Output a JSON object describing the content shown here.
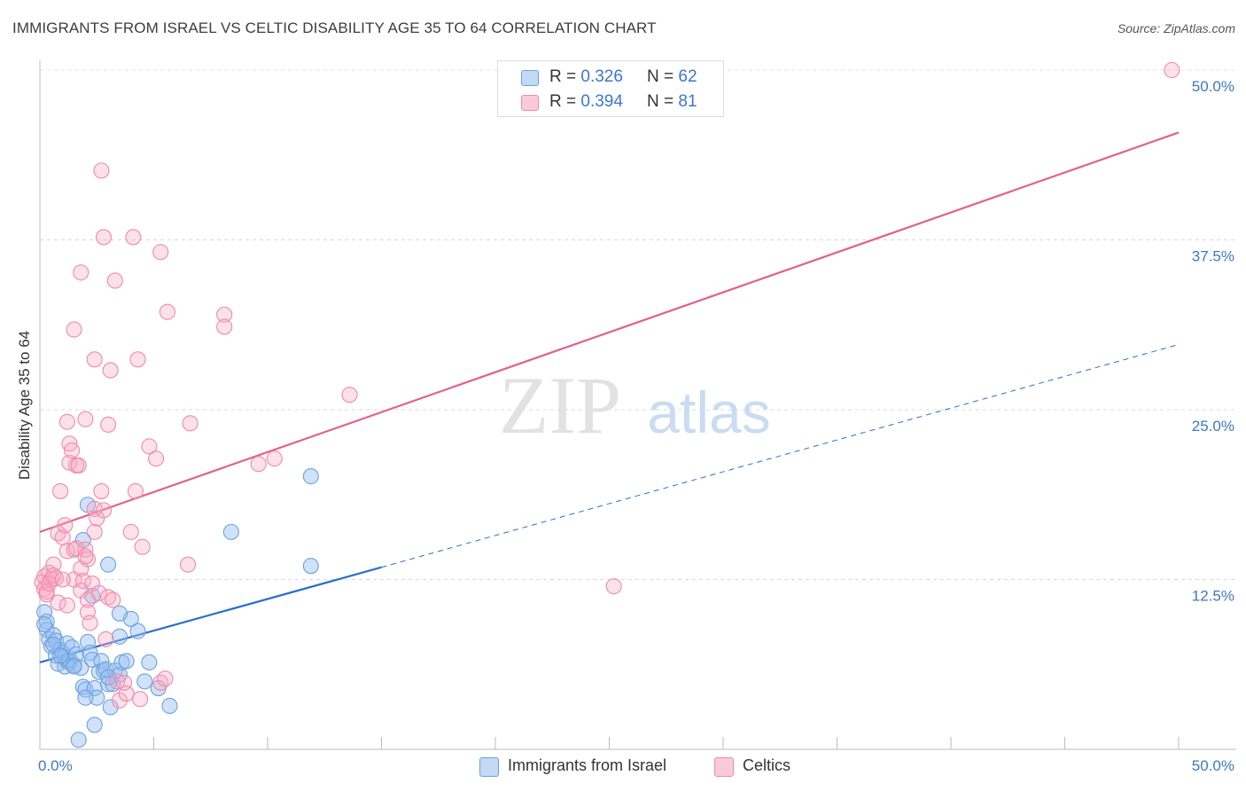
{
  "title": "IMMIGRANTS FROM ISRAEL VS CELTIC DISABILITY AGE 35 TO 64 CORRELATION CHART",
  "source": "Source: ZipAtlas.com",
  "watermark": {
    "zip": "ZIP",
    "atlas": "atlas"
  },
  "legend_top": [
    {
      "r_label": "R = ",
      "r_value": "0.326",
      "n_label": "N = ",
      "n_value": "62",
      "color": "#6ea1e0"
    },
    {
      "r_label": "R = ",
      "r_value": "0.394",
      "n_label": "N = ",
      "n_value": "81",
      "color": "#f08aaa"
    }
  ],
  "legend_bottom": [
    {
      "label": "Immigrants from Israel",
      "color": "#6ea1e0"
    },
    {
      "label": "Celtics",
      "color": "#f08aaa"
    }
  ],
  "chart_data": {
    "type": "scatter",
    "title": "IMMIGRANTS FROM ISRAEL VS CELTIC DISABILITY AGE 35 TO 64 CORRELATION CHART",
    "xlabel": "",
    "ylabel": "Disability Age 35 to 64",
    "xlim": [
      0,
      50
    ],
    "ylim": [
      0,
      50
    ],
    "x_tick_labels": [
      "0.0%",
      "50.0%"
    ],
    "y_tick_labels": [
      "12.5%",
      "25.0%",
      "37.5%",
      "50.0%"
    ],
    "y_ticks": [
      12.5,
      25.0,
      37.5,
      50.0
    ],
    "grid": true,
    "legend_placement": "top-center",
    "series": [
      {
        "name": "Immigrants from Israel",
        "color": "#6ea1e0",
        "line_color": "#2a6fc9",
        "trend": {
          "x0": 0,
          "y0": 6.4,
          "x1": 15,
          "y1": 13.4,
          "dashed_to_x": 50,
          "dashed_to_y": 29.8
        },
        "points": [
          [
            0.2,
            10.1
          ],
          [
            0.3,
            9.4
          ],
          [
            0.3,
            8.8
          ],
          [
            0.4,
            8.1
          ],
          [
            0.5,
            7.6
          ],
          [
            0.6,
            8.4
          ],
          [
            0.7,
            8.0
          ],
          [
            0.7,
            6.9
          ],
          [
            0.8,
            6.3
          ],
          [
            0.9,
            7.3
          ],
          [
            1.0,
            7.1
          ],
          [
            1.1,
            6.8
          ],
          [
            1.1,
            6.1
          ],
          [
            1.2,
            6.5
          ],
          [
            1.2,
            7.8
          ],
          [
            1.3,
            6.4
          ],
          [
            1.3,
            6.6
          ],
          [
            1.4,
            7.5
          ],
          [
            1.5,
            6.2
          ],
          [
            1.6,
            7.0
          ],
          [
            1.8,
            6.0
          ],
          [
            1.9,
            4.6
          ],
          [
            2.0,
            4.4
          ],
          [
            2.1,
            7.9
          ],
          [
            2.2,
            7.1
          ],
          [
            2.3,
            6.6
          ],
          [
            2.4,
            4.5
          ],
          [
            2.5,
            3.8
          ],
          [
            2.6,
            5.7
          ],
          [
            2.7,
            6.5
          ],
          [
            2.8,
            5.8
          ],
          [
            2.9,
            5.9
          ],
          [
            3.0,
            4.8
          ],
          [
            3.1,
            3.1
          ],
          [
            3.2,
            4.8
          ],
          [
            3.3,
            5.8
          ],
          [
            3.5,
            5.5
          ],
          [
            3.6,
            6.4
          ],
          [
            3.8,
            6.5
          ],
          [
            4.0,
            9.6
          ],
          [
            4.3,
            8.7
          ],
          [
            4.6,
            5.0
          ],
          [
            5.2,
            4.5
          ],
          [
            5.7,
            3.2
          ],
          [
            1.9,
            15.4
          ],
          [
            2.1,
            18.0
          ],
          [
            2.3,
            11.3
          ],
          [
            3.5,
            10.0
          ],
          [
            3.5,
            8.3
          ],
          [
            3.0,
            13.6
          ],
          [
            4.8,
            6.4
          ],
          [
            2.0,
            3.8
          ],
          [
            2.4,
            1.8
          ],
          [
            1.7,
            0.7
          ],
          [
            0.6,
            7.7
          ],
          [
            0.9,
            6.9
          ],
          [
            1.5,
            6.1
          ],
          [
            8.4,
            16.0
          ],
          [
            11.9,
            20.1
          ],
          [
            11.9,
            13.5
          ],
          [
            0.2,
            9.2
          ],
          [
            3.0,
            5.3
          ]
        ]
      },
      {
        "name": "Celtics",
        "color": "#f08aaa",
        "line_color": "#e0628c",
        "trend": {
          "x0": 0,
          "y0": 16.0,
          "x1": 50,
          "y1": 45.4
        },
        "points": [
          [
            0.1,
            12.3
          ],
          [
            0.2,
            11.8
          ],
          [
            0.2,
            12.7
          ],
          [
            0.3,
            11.4
          ],
          [
            0.4,
            13.0
          ],
          [
            0.5,
            12.5
          ],
          [
            0.6,
            13.6
          ],
          [
            0.7,
            12.6
          ],
          [
            0.8,
            10.8
          ],
          [
            0.8,
            15.9
          ],
          [
            0.9,
            19.0
          ],
          [
            1.0,
            15.6
          ],
          [
            1.1,
            16.5
          ],
          [
            1.2,
            14.6
          ],
          [
            1.2,
            24.1
          ],
          [
            1.3,
            22.5
          ],
          [
            1.3,
            21.1
          ],
          [
            1.4,
            22.0
          ],
          [
            1.5,
            14.7
          ],
          [
            1.5,
            12.5
          ],
          [
            1.6,
            20.9
          ],
          [
            1.7,
            20.9
          ],
          [
            1.8,
            13.3
          ],
          [
            1.8,
            11.7
          ],
          [
            1.9,
            12.4
          ],
          [
            2.0,
            24.3
          ],
          [
            2.0,
            14.7
          ],
          [
            2.1,
            14.0
          ],
          [
            2.1,
            11.0
          ],
          [
            2.1,
            10.1
          ],
          [
            2.2,
            9.3
          ],
          [
            2.3,
            12.2
          ],
          [
            2.4,
            17.7
          ],
          [
            2.4,
            16.0
          ],
          [
            2.5,
            17.0
          ],
          [
            2.6,
            11.5
          ],
          [
            2.7,
            19.0
          ],
          [
            2.8,
            17.6
          ],
          [
            2.9,
            8.1
          ],
          [
            3.0,
            11.2
          ],
          [
            3.0,
            23.9
          ],
          [
            3.2,
            11.0
          ],
          [
            3.4,
            5.0
          ],
          [
            3.5,
            3.6
          ],
          [
            3.7,
            4.9
          ],
          [
            4.0,
            16.0
          ],
          [
            4.2,
            19.0
          ],
          [
            4.5,
            14.9
          ],
          [
            4.8,
            22.3
          ],
          [
            5.1,
            21.4
          ],
          [
            5.3,
            4.9
          ],
          [
            5.5,
            5.2
          ],
          [
            1.5,
            30.9
          ],
          [
            1.8,
            35.1
          ],
          [
            2.4,
            28.7
          ],
          [
            2.7,
            42.6
          ],
          [
            2.8,
            37.7
          ],
          [
            3.1,
            27.9
          ],
          [
            3.3,
            34.5
          ],
          [
            4.1,
            37.7
          ],
          [
            4.3,
            28.7
          ],
          [
            5.3,
            36.6
          ],
          [
            5.6,
            32.2
          ],
          [
            6.6,
            24.0
          ],
          [
            6.5,
            13.6
          ],
          [
            8.1,
            32.0
          ],
          [
            8.1,
            31.1
          ],
          [
            9.6,
            21.0
          ],
          [
            10.3,
            21.4
          ],
          [
            13.6,
            26.1
          ],
          [
            25.2,
            12.0
          ],
          [
            49.7,
            50.0
          ],
          [
            0.3,
            11.6
          ],
          [
            0.4,
            12.2
          ],
          [
            0.6,
            12.8
          ],
          [
            1.0,
            12.5
          ],
          [
            1.2,
            10.6
          ],
          [
            1.6,
            14.8
          ],
          [
            2.0,
            14.2
          ],
          [
            3.8,
            4.1
          ],
          [
            4.4,
            3.7
          ]
        ]
      }
    ]
  }
}
